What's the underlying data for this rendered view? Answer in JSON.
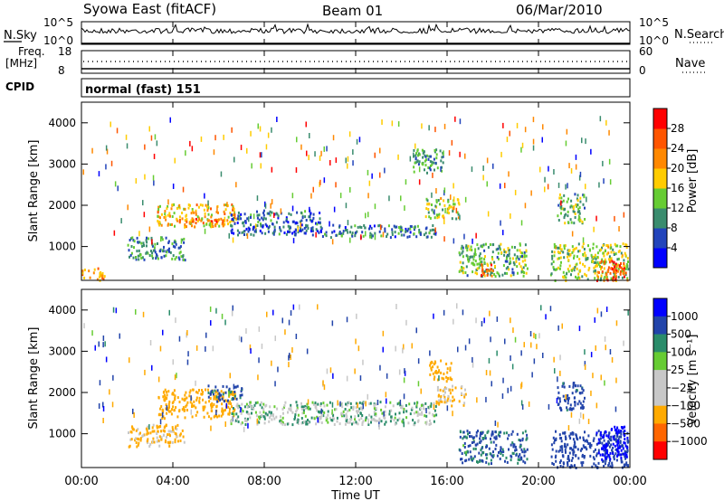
{
  "header": {
    "title": "Syowa East (fitACF)",
    "beam": "Beam 01",
    "date": "06/Mar/2010"
  },
  "strips": {
    "nsky_label": "N.Sky",
    "nsearch_label": "N.Search",
    "nsky_ticks": [
      "10^5",
      "10^0"
    ],
    "nsearch_ticks": [
      "10^5",
      "10^0"
    ],
    "freq_label": "Freq.",
    "freq_unit": "[MHz]",
    "freq_ticks": [
      "18",
      "8"
    ],
    "nave_label": "Nave",
    "nave_ticks": [
      "60",
      "0"
    ],
    "cpid_label": "CPID",
    "cpid_value": "normal (fast) 151"
  },
  "axes": {
    "xlabel": "Time UT",
    "ylabel": "Slant Range [km]",
    "x_ticks": [
      "00:00",
      "04:00",
      "08:00",
      "12:00",
      "16:00",
      "20:00",
      "00:00"
    ],
    "y_ticks": [
      "1000",
      "2000",
      "3000",
      "4000"
    ]
  },
  "colors": {
    "power": [
      "#0000ff",
      "#2244bb",
      "#3a8c6e",
      "#66cc33",
      "#ffcc00",
      "#ff8800",
      "#ff5500",
      "#ff0000"
    ],
    "velocity": [
      "#ff0000",
      "#ff6600",
      "#ffaa00",
      "#c8c8c8",
      "#c8c8c8",
      "#66cc33",
      "#2a8c6a",
      "#2244aa",
      "#0000ff"
    ],
    "ground_scatter": "#c0c0c0"
  },
  "chart_data": [
    {
      "type": "heatmap",
      "panel": "power",
      "x_range": [
        "00:00",
        "24:00"
      ],
      "y_range": [
        180,
        4500
      ],
      "colorbar_label": "Power [dB]",
      "colorbar_ticks": [
        "4",
        "8",
        "12",
        "16",
        "20",
        "24",
        "28"
      ],
      "colorbar_range": [
        0,
        30
      ],
      "regions": [
        {
          "t": [
            3.3,
            6.8
          ],
          "r": [
            1500,
            2050
          ],
          "v": 18
        },
        {
          "t": [
            4.2,
            6.2
          ],
          "r": [
            1580,
            1700
          ],
          "v": 24
        },
        {
          "t": [
            2.0,
            4.5
          ],
          "r": [
            700,
            1250
          ],
          "v": 9
        },
        {
          "t": [
            6.5,
            10.5
          ],
          "r": [
            1300,
            1900
          ],
          "v": 7
        },
        {
          "t": [
            10.5,
            15.5
          ],
          "r": [
            1250,
            1550
          ],
          "v": 8
        },
        {
          "t": [
            14.5,
            15.8
          ],
          "r": [
            2800,
            3400
          ],
          "v": 10
        },
        {
          "t": [
            15.0,
            16.5
          ],
          "r": [
            1700,
            2200
          ],
          "v": 15
        },
        {
          "t": [
            16.5,
            19.5
          ],
          "r": [
            300,
            1100
          ],
          "v": 12
        },
        {
          "t": [
            17.2,
            18.0
          ],
          "r": [
            300,
            600
          ],
          "v": 22
        },
        {
          "t": [
            20.5,
            23.9
          ],
          "r": [
            200,
            1100
          ],
          "v": 14
        },
        {
          "t": [
            22.5,
            23.9
          ],
          "r": [
            200,
            700
          ],
          "v": 24
        },
        {
          "t": [
            20.8,
            22.0
          ],
          "r": [
            1600,
            2300
          ],
          "v": 12
        },
        {
          "t": [
            0.0,
            1.0
          ],
          "r": [
            200,
            500
          ],
          "v": 20
        }
      ]
    },
    {
      "type": "heatmap",
      "panel": "velocity",
      "x_range": [
        "00:00",
        "24:00"
      ],
      "y_range": [
        180,
        4500
      ],
      "colorbar_label": "Velocity [m s⁻¹]",
      "colorbar_ticks": [
        "1000",
        "500",
        "100",
        "25",
        "−25",
        "−100",
        "−500",
        "−1000"
      ],
      "regions": [
        {
          "t": [
            3.3,
            6.8
          ],
          "r": [
            1400,
            2100
          ],
          "v": -200
        },
        {
          "t": [
            5.5,
            7.0
          ],
          "r": [
            1800,
            2200
          ],
          "v": 150
        },
        {
          "t": [
            2.0,
            4.5
          ],
          "r": [
            700,
            1250
          ],
          "v": -150
        },
        {
          "t": [
            6.5,
            15.5
          ],
          "r": [
            1250,
            1800
          ],
          "v": 0
        },
        {
          "t": [
            15.2,
            16.2
          ],
          "r": [
            2300,
            2800
          ],
          "v": -250
        },
        {
          "t": [
            15.5,
            16.8
          ],
          "r": [
            1700,
            2200
          ],
          "v": -120
        },
        {
          "t": [
            16.5,
            19.5
          ],
          "r": [
            300,
            1100
          ],
          "v": 120
        },
        {
          "t": [
            20.5,
            23.9
          ],
          "r": [
            200,
            1100
          ],
          "v": 300
        },
        {
          "t": [
            22.5,
            23.9
          ],
          "r": [
            400,
            1200
          ],
          "v": 700
        },
        {
          "t": [
            20.8,
            22.0
          ],
          "r": [
            1600,
            2300
          ],
          "v": 180
        }
      ]
    }
  ]
}
